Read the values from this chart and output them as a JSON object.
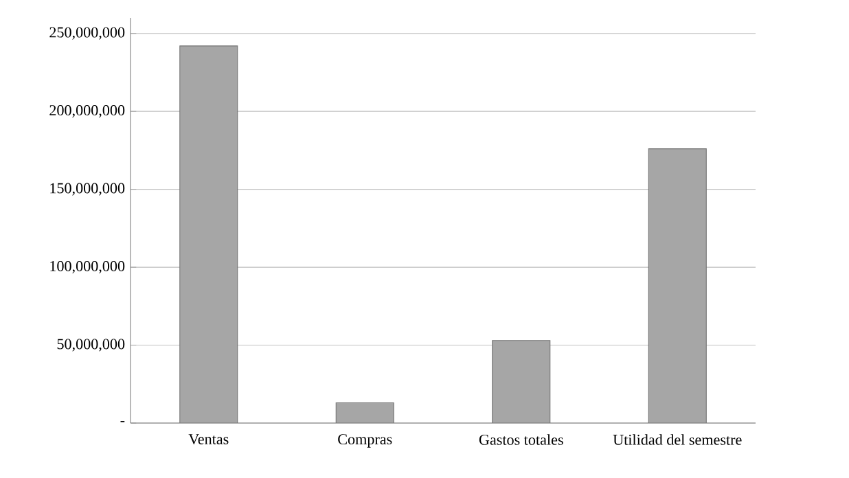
{
  "chart_data": {
    "type": "bar",
    "categories": [
      "Ventas",
      "Compras",
      "Gastos totales",
      "Utilidad del semestre"
    ],
    "values": [
      242000000,
      13000000,
      53000000,
      176000000
    ],
    "color": "#a6a6a6",
    "ylim": [
      0,
      260000000
    ],
    "yticks": [
      {
        "value": 0,
        "label": "-"
      },
      {
        "value": 50000000,
        "label": "50,000,000"
      },
      {
        "value": 100000000,
        "label": "100,000,000"
      },
      {
        "value": 150000000,
        "label": "150,000,000"
      },
      {
        "value": 200000000,
        "label": "200,000,000"
      },
      {
        "value": 250000000,
        "label": "250,000,000"
      }
    ],
    "grid": "y"
  }
}
